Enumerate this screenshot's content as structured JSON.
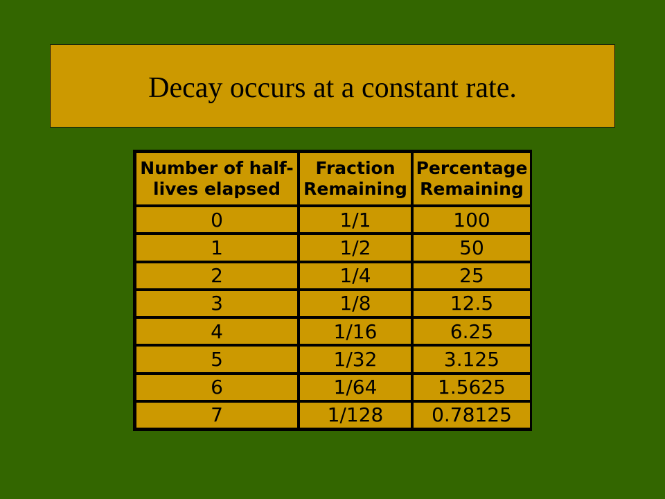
{
  "colors": {
    "background": "#336600",
    "box_fill": "#cc9900",
    "text": "#000000",
    "border": "#000000"
  },
  "slide": {
    "title": "Decay occurs at a constant rate."
  },
  "table": {
    "headers": [
      "Number of half-lives elapsed",
      "Fraction Remaining",
      "Percentage Remaining"
    ],
    "rows": [
      [
        "0",
        "1/1",
        "100"
      ],
      [
        "1",
        "1/2",
        "50"
      ],
      [
        "2",
        "1/4",
        "25"
      ],
      [
        "3",
        "1/8",
        "12.5"
      ],
      [
        "4",
        "1/16",
        "6.25"
      ],
      [
        "5",
        "1/32",
        "3.125"
      ],
      [
        "6",
        "1/64",
        "1.5625"
      ],
      [
        "7",
        "1/128",
        "0.78125"
      ]
    ]
  }
}
